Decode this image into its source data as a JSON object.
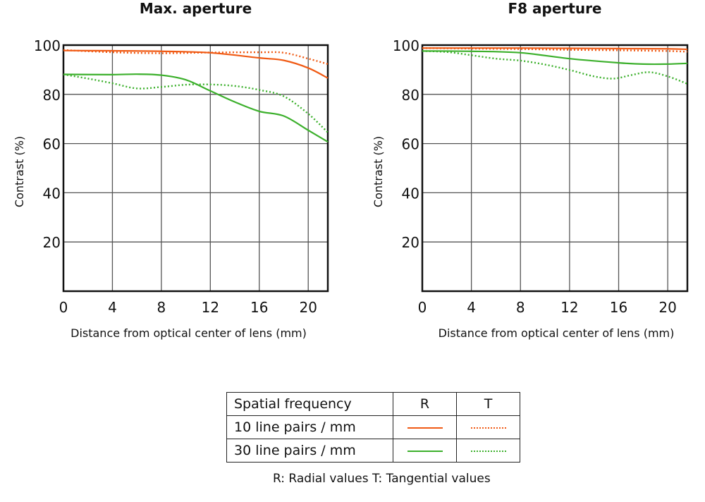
{
  "colors": {
    "lp10": "#f05a14",
    "lp30": "#3cb02c",
    "grid": "#555555",
    "frame": "#111111"
  },
  "legend": {
    "header": "Spatial frequency",
    "col_r": "R",
    "col_t": "T",
    "rows": [
      {
        "label": "10 line pairs / mm",
        "color": "#f05a14"
      },
      {
        "label": "30 line pairs / mm",
        "color": "#3cb02c"
      }
    ],
    "note": "R: Radial values  T: Tangential values"
  },
  "chart_data": [
    {
      "type": "line",
      "title": "Max. aperture",
      "xlabel": "Distance from optical center of lens (mm)",
      "ylabel": "Contrast (%)",
      "xlim": [
        0,
        21.6
      ],
      "ylim": [
        0,
        100
      ],
      "xticks": [
        "0",
        "4",
        "8",
        "12",
        "16",
        "20"
      ],
      "yticks": [
        "20",
        "40",
        "60",
        "80",
        "100"
      ],
      "grid": true,
      "series": [
        {
          "name": "10 lp/mm R",
          "style": "solid",
          "color": "#f05a14",
          "x": [
            0,
            4,
            8,
            12,
            16,
            18,
            20,
            21.6
          ],
          "y": [
            97.8,
            97.7,
            97.5,
            96.9,
            94.8,
            93.8,
            90.7,
            86.6
          ]
        },
        {
          "name": "10 lp/mm T",
          "style": "dotted",
          "color": "#f05a14",
          "x": [
            0,
            4,
            8,
            12,
            16,
            18,
            20,
            21.6
          ],
          "y": [
            98,
            97.1,
            96.7,
            97,
            97.1,
            96.9,
            94.5,
            92.3
          ]
        },
        {
          "name": "30 lp/mm R",
          "style": "solid",
          "color": "#3cb02c",
          "x": [
            0,
            4,
            6,
            8,
            10,
            12,
            14,
            16,
            18,
            20,
            21.6
          ],
          "y": [
            88.1,
            88,
            88.2,
            87.8,
            85.9,
            81.4,
            76.9,
            73.1,
            71.2,
            65.4,
            60.7
          ]
        },
        {
          "name": "30 lp/mm T",
          "style": "dotted",
          "color": "#3cb02c",
          "x": [
            0,
            2,
            4,
            6,
            8,
            10,
            12,
            14,
            16,
            18,
            20,
            21.6
          ],
          "y": [
            88.1,
            86.4,
            84.5,
            82.4,
            83,
            83.9,
            84,
            83.4,
            81.8,
            79.2,
            72.1,
            64.5
          ]
        }
      ]
    },
    {
      "type": "line",
      "title": "F8 aperture",
      "xlabel": "Distance from optical center of lens (mm)",
      "ylabel": "Contrast (%)",
      "xlim": [
        0,
        21.6
      ],
      "ylim": [
        0,
        100
      ],
      "xticks": [
        "0",
        "4",
        "8",
        "12",
        "16",
        "20"
      ],
      "yticks": [
        "20",
        "40",
        "60",
        "80",
        "100"
      ],
      "grid": true,
      "series": [
        {
          "name": "10 lp/mm R",
          "style": "solid",
          "color": "#f05a14",
          "x": [
            0,
            4,
            8,
            12,
            16,
            20,
            21.6
          ],
          "y": [
            98.8,
            98.8,
            98.8,
            98.7,
            98.6,
            98.5,
            98.3
          ]
        },
        {
          "name": "10 lp/mm T",
          "style": "dotted",
          "color": "#f05a14",
          "x": [
            0,
            4,
            8,
            12,
            16,
            20,
            21.6
          ],
          "y": [
            98.8,
            98.6,
            98.4,
            98.1,
            97.9,
            97.6,
            97.3
          ]
        },
        {
          "name": "30 lp/mm R",
          "style": "solid",
          "color": "#3cb02c",
          "x": [
            0,
            4,
            8,
            12,
            16,
            18,
            20,
            21.6
          ],
          "y": [
            97.6,
            97.5,
            96.9,
            94.5,
            92.8,
            92.3,
            92.3,
            92.6
          ]
        },
        {
          "name": "30 lp/mm T",
          "style": "dotted",
          "color": "#3cb02c",
          "x": [
            0,
            2,
            4,
            6,
            8,
            10,
            12,
            14,
            15.6,
            17,
            18.5,
            20,
            21.6
          ],
          "y": [
            97.6,
            97.2,
            95.9,
            94.5,
            93.7,
            92.1,
            89.9,
            87.3,
            86.4,
            87.8,
            89,
            87.3,
            84.3
          ]
        }
      ]
    }
  ]
}
